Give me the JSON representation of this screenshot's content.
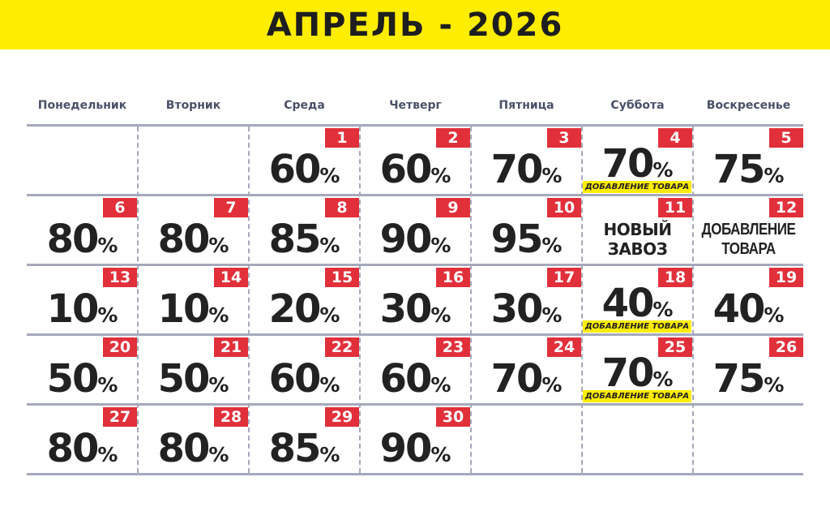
{
  "title": "АПРЕЛЬ - 2026",
  "weekdays": [
    "Понедельник",
    "Вторник",
    "Среда",
    "Четверг",
    "Пятница",
    "Суббота",
    "Воскресенье"
  ],
  "colors": {
    "header_bg": "#ffed00",
    "badge_red": "#e1303a",
    "grid": "#a6a9bc",
    "text": "#222222"
  },
  "cells": [
    null,
    null,
    {
      "day": "1",
      "value": "60",
      "pct": "%"
    },
    {
      "day": "2",
      "value": "60",
      "pct": "%"
    },
    {
      "day": "3",
      "value": "70",
      "pct": "%"
    },
    {
      "day": "4",
      "value": "70",
      "pct": "%",
      "tag": "ДОБАВЛЕНИЕ ТОВАРА"
    },
    {
      "day": "5",
      "value": "75",
      "pct": "%"
    },
    {
      "day": "6",
      "value": "80",
      "pct": "%"
    },
    {
      "day": "7",
      "value": "80",
      "pct": "%"
    },
    {
      "day": "8",
      "value": "85",
      "pct": "%"
    },
    {
      "day": "9",
      "value": "90",
      "pct": "%"
    },
    {
      "day": "10",
      "value": "95",
      "pct": "%"
    },
    {
      "day": "11",
      "note": [
        "НОВЫЙ",
        "ЗАВОЗ"
      ]
    },
    {
      "day": "12",
      "note": [
        "ДОБАВЛЕНИЕ",
        "ТОВАРА"
      ]
    },
    {
      "day": "13",
      "value": "10",
      "pct": "%"
    },
    {
      "day": "14",
      "value": "10",
      "pct": "%"
    },
    {
      "day": "15",
      "value": "20",
      "pct": "%"
    },
    {
      "day": "16",
      "value": "30",
      "pct": "%"
    },
    {
      "day": "17",
      "value": "30",
      "pct": "%"
    },
    {
      "day": "18",
      "value": "40",
      "pct": "%",
      "tag": "ДОБАВЛЕНИЕ ТОВАРА"
    },
    {
      "day": "19",
      "value": "40",
      "pct": "%"
    },
    {
      "day": "20",
      "value": "50",
      "pct": "%"
    },
    {
      "day": "21",
      "value": "50",
      "pct": "%"
    },
    {
      "day": "22",
      "value": "60",
      "pct": "%"
    },
    {
      "day": "23",
      "value": "60",
      "pct": "%"
    },
    {
      "day": "24",
      "value": "70",
      "pct": "%"
    },
    {
      "day": "25",
      "value": "70",
      "pct": "%",
      "tag": "ДОБАВЛЕНИЕ ТОВАРА"
    },
    {
      "day": "26",
      "value": "75",
      "pct": "%"
    },
    {
      "day": "27",
      "value": "80",
      "pct": "%"
    },
    {
      "day": "28",
      "value": "80",
      "pct": "%"
    },
    {
      "day": "29",
      "value": "85",
      "pct": "%"
    },
    {
      "day": "30",
      "value": "90",
      "pct": "%"
    },
    null,
    null,
    null
  ]
}
